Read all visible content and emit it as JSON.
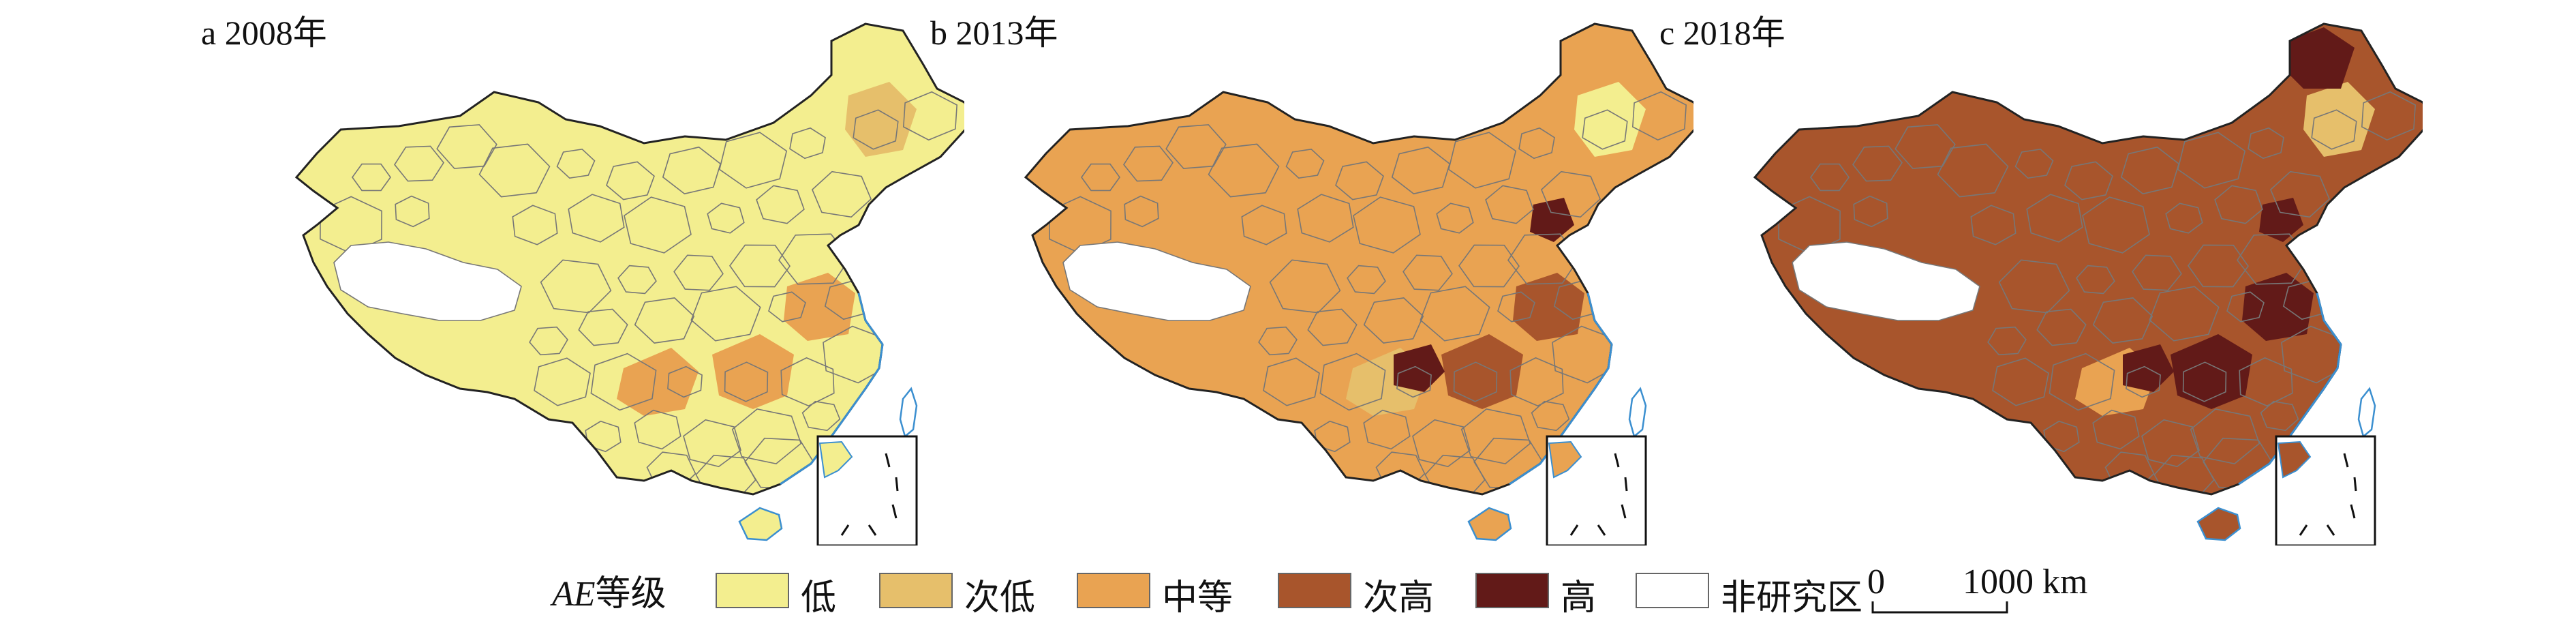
{
  "panels": [
    {
      "label": "a 2008年",
      "dominant": "#f3ee8f",
      "accents": [
        "#e9a352",
        "#e9a352",
        "#e9a352",
        "#e6bf6b"
      ],
      "dark": []
    },
    {
      "label": "b 2013年",
      "dominant": "#e9a352",
      "accents": [
        "#a8552c",
        "#a8552c",
        "#e6bf6b",
        "#f3ee8f"
      ],
      "dark": [
        "#621a18",
        "#621a18"
      ]
    },
    {
      "label": "c 2018年",
      "dominant": "#a8552c",
      "accents": [
        "#621a18",
        "#621a18",
        "#e9a352",
        "#e6bf6b"
      ],
      "dark": [
        "#621a18",
        "#621a18",
        "#621a18"
      ]
    }
  ],
  "legend": {
    "title_italic": "AE",
    "title_rest": "等级",
    "items": [
      {
        "label": "低",
        "color": "#f3ee8f"
      },
      {
        "label": "次低",
        "color": "#e6bf6b"
      },
      {
        "label": "中等",
        "color": "#e9a352"
      },
      {
        "label": "次高",
        "color": "#a8552c"
      },
      {
        "label": "高",
        "color": "#621a18"
      },
      {
        "label": "非研究区",
        "color": "#ffffff"
      }
    ]
  },
  "scalebar": {
    "zero": "0",
    "max": "1000 km"
  }
}
